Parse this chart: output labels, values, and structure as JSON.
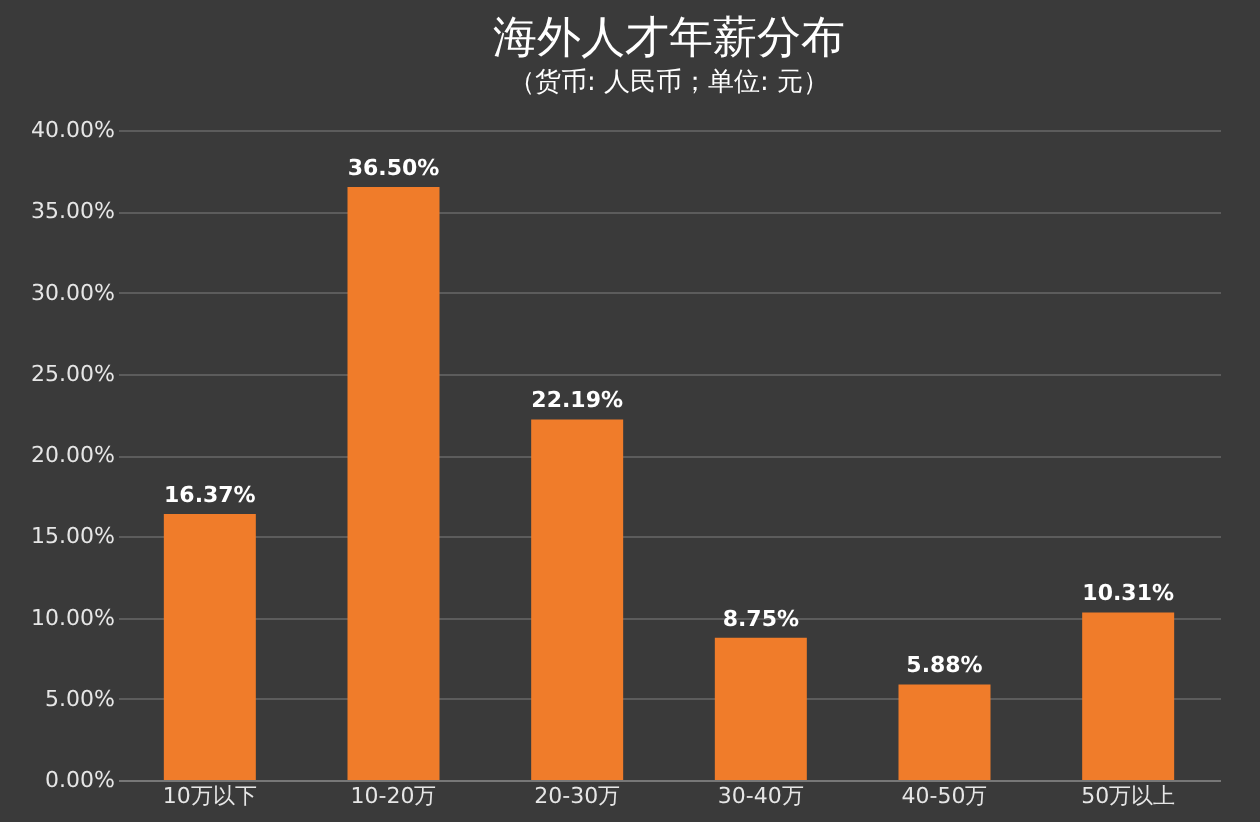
{
  "chart_data": {
    "type": "bar",
    "title": "海外人才年薪分布",
    "subtitle": "（货币: 人民币；单位: 元）",
    "categories": [
      "10万以下",
      "10-20万",
      "20-30万",
      "30-40万",
      "40-50万",
      "50万以上"
    ],
    "values": [
      16.37,
      36.5,
      22.19,
      8.75,
      5.88,
      10.31
    ],
    "value_labels": [
      "16.37%",
      "36.50%",
      "22.19%",
      "8.75%",
      "5.88%",
      "10.31%"
    ],
    "color": "#f07c2a",
    "ylim": [
      0,
      40
    ],
    "yticks": [
      {
        "value": 0,
        "label": "0.00%"
      },
      {
        "value": 5,
        "label": "5.00%"
      },
      {
        "value": 10,
        "label": "10.00%"
      },
      {
        "value": 15,
        "label": "15.00%"
      },
      {
        "value": 20,
        "label": "20.00%"
      },
      {
        "value": 25,
        "label": "25.00%"
      },
      {
        "value": 30,
        "label": "30.00%"
      },
      {
        "value": 35,
        "label": "35.00%"
      },
      {
        "value": 40,
        "label": "40.00%"
      }
    ],
    "grid": "y"
  }
}
